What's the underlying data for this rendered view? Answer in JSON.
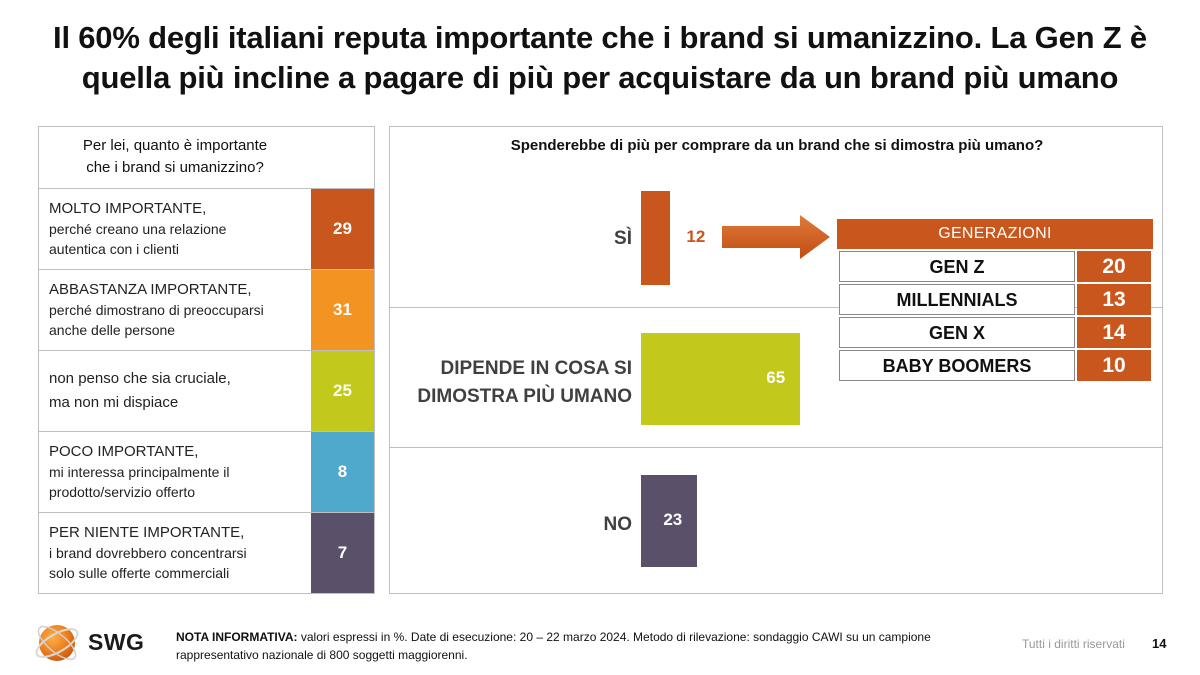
{
  "title": {
    "line1": "Il 60% degli italiani reputa importante che i brand si umanizzino. La Gen Z è",
    "line2": "quella più incline a pagare di più per acquistare da un brand più umano"
  },
  "left": {
    "question_line1": "Per lei, quanto è importante",
    "question_line2": "che i brand si umanizzino?",
    "rows": [
      {
        "head": "MOLTO IMPORTANTE",
        "comma": ",",
        "sub1": "perché creano una relazione",
        "sub2": "autentica con i clienti",
        "value": "29",
        "color": "#c9561c"
      },
      {
        "head": "ABBASTANZA IMPORTANTE",
        "comma": ",",
        "sub1": "perché dimostrano di preoccuparsi",
        "sub2": "anche delle persone",
        "value": "31",
        "color": "#f39322"
      },
      {
        "line1": "non penso che sia cruciale,",
        "line2": "ma non mi dispiace",
        "value": "25",
        "color": "#c3c91a"
      },
      {
        "head": "POCO IMPORTANTE",
        "comma": ",",
        "sub1": "mi interessa principalmente il",
        "sub2": "prodotto/servizio offerto",
        "value": "8",
        "color": "#4ea9cc"
      },
      {
        "head": "PER NIENTE IMPORTANTE",
        "comma": ",",
        "sub1": "i brand dovrebbero concentrarsi",
        "sub2": "solo sulle offerte commerciali",
        "value": "7",
        "color": "#5b5069"
      }
    ]
  },
  "chart_data": {
    "type": "bar",
    "title": "Spenderebbe di più per comprare da un brand che si dimostra più umano?",
    "categories": [
      "SÌ",
      "DIPENDE IN COSA SI DIMOSTRA PIÙ UMANO",
      "NO"
    ],
    "values": [
      12,
      65,
      23
    ],
    "colors": [
      "#c9561c",
      "#c3c91a",
      "#5b5069"
    ],
    "label_colors": [
      "#c9561c",
      "#ffffff",
      "#ffffff"
    ],
    "unit": "%",
    "ylim": [
      0,
      100
    ]
  },
  "right": {
    "question": "Spenderebbe di più per comprare da un brand che si dimostra più umano?",
    "cat_si": "SÌ",
    "cat_dipende_1": "DIPENDE IN COSA SI",
    "cat_dipende_2": "DIMOSTRA PIÙ UMANO",
    "cat_no": "NO",
    "generations": {
      "header": "GENERAZIONI",
      "rows": [
        {
          "name": "GEN Z",
          "value": "20"
        },
        {
          "name": "MILLENNIALS",
          "value": "13"
        },
        {
          "name": "GEN X",
          "value": "14"
        },
        {
          "name": "BABY BOOMERS",
          "value": "10"
        }
      ]
    }
  },
  "footer": {
    "logo": "SWG",
    "note_bold": "NOTA INFORMATIVA:",
    "note_line1": " valori espressi in %. Date di esecuzione: 20 – 22 marzo 2024. Metodo di rilevazione: sondaggio CAWI su un campione",
    "note_line2": "rappresentativo nazionale di 800 soggetti maggiorenni.",
    "rights": "Tutti i diritti riservati",
    "page": "14"
  }
}
